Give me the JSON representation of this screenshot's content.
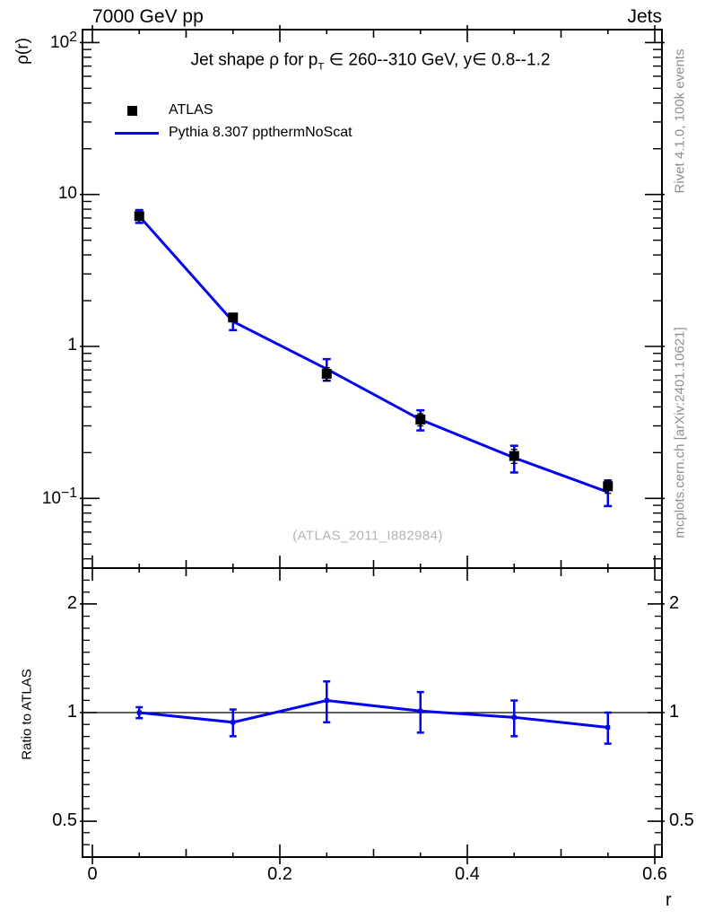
{
  "header": {
    "left": "7000 GeV pp",
    "right": "Jets"
  },
  "title": {
    "part1": "Jet shape ρ for p",
    "sub": "T",
    "part2": " ∈ 260--310 GeV, y∈ 0.8--1.2"
  },
  "y_axis": {
    "title": "ρ(r)",
    "tick_labels": [
      {
        "base": "10",
        "exp": "2"
      },
      {
        "base": "10",
        "exp": ""
      },
      {
        "base": "1",
        "exp": ""
      },
      {
        "base": "10",
        "exp": "−1"
      }
    ]
  },
  "x_axis": {
    "title": "r",
    "tick_labels": [
      "0",
      "0.2",
      "0.4",
      "0.6"
    ]
  },
  "ratio_axis": {
    "title": "Ratio to ATLAS",
    "tick_labels": [
      "2",
      "1",
      "0.5"
    ]
  },
  "legend": {
    "data_label": "ATLAS",
    "mc_label": "Pythia 8.307 ppthermNoScat"
  },
  "watermark": "(ATLAS_2011_I882984)",
  "side_notes": {
    "top": "Rivet 4.1.0,  100k events",
    "bottom": "mcplots.cern.ch [arXiv:2401.10621]"
  },
  "colors": {
    "mc_blue": "#0404ee",
    "data_black": "#000000",
    "side_text": "#8f8f8f",
    "watermark": "#b4b4b4"
  },
  "chart_data": {
    "type": "line",
    "title": "Jet shape ρ for pT ∈ 260--310 GeV, y∈ 0.8--1.2",
    "xlabel": "r",
    "x": [
      0.05,
      0.15,
      0.25,
      0.35,
      0.45,
      0.55
    ],
    "xlim": [
      -0.011,
      0.608
    ],
    "x_ticks_major": [
      0,
      0.2,
      0.4,
      0.6
    ],
    "x_ticks_medium": [
      0.1,
      0.3,
      0.5
    ],
    "x_tick_minor_step": 0.05,
    "main_panel": {
      "ylabel": "ρ(r)",
      "yscale": "log",
      "ylim": [
        0.035,
        122
      ],
      "y_ticks_major": [
        100,
        10,
        1,
        0.1
      ],
      "series": [
        {
          "name": "ATLAS",
          "type": "scatter-square",
          "color": "#000000",
          "values": [
            7.2,
            1.55,
            0.66,
            0.33,
            0.19,
            0.12
          ],
          "yerr": [
            0.35,
            0.09,
            0.065,
            0.03,
            0.02,
            0.012
          ]
        },
        {
          "name": "Pythia 8.307 ppthermNoScat",
          "type": "line",
          "color": "#0404ee",
          "values": [
            7.2,
            1.46,
            0.71,
            0.33,
            0.185,
            0.11
          ],
          "yerr": [
            0.7,
            0.18,
            0.115,
            0.05,
            0.037,
            0.021
          ]
        }
      ]
    },
    "ratio_panel": {
      "ylabel": "Ratio to ATLAS",
      "yscale": "log",
      "ylim": [
        0.4,
        2.5
      ],
      "y_ticks_major": [
        2,
        1,
        0.5
      ],
      "reference_line": 1.0,
      "series": [
        {
          "name": "Pythia 8.307 ppthermNoScat / ATLAS",
          "color": "#0404ee",
          "values": [
            1.0,
            0.94,
            1.08,
            1.01,
            0.97,
            0.91
          ],
          "yerr": [
            0.035,
            0.08,
            0.14,
            0.13,
            0.11,
            0.09
          ]
        }
      ]
    },
    "legend_position": "top-left",
    "grid": false
  }
}
